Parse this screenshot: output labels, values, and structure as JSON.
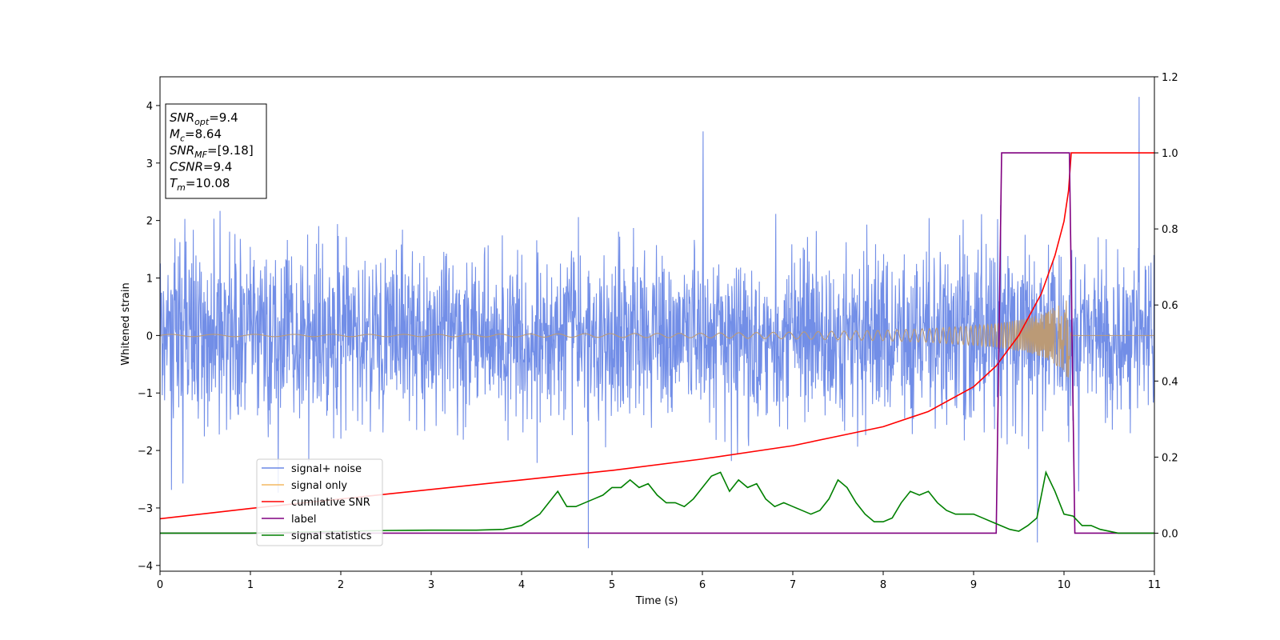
{
  "chart_data": {
    "type": "line",
    "xlabel": "Time (s)",
    "ylabel": "Whitened strain",
    "xlim": [
      0,
      11
    ],
    "ylim": [
      -4.1,
      4.5
    ],
    "y2lim": [
      -0.1,
      1.2
    ],
    "xticks": [
      "0",
      "1",
      "2",
      "3",
      "4",
      "5",
      "6",
      "7",
      "8",
      "9",
      "10",
      "11"
    ],
    "yticks": [
      "−4",
      "−3",
      "−2",
      "−1",
      "0",
      "1",
      "2",
      "3",
      "4"
    ],
    "y2ticks": [
      "0.0",
      "0.2",
      "0.4",
      "0.6",
      "0.8",
      "1.0",
      "1.2"
    ],
    "legend_position": "lower-left",
    "annotation": [
      {
        "main": "SNR",
        "sub": "opt",
        "rest": "=9.4"
      },
      {
        "main": "M",
        "sub": "c",
        "rest": "=8.64"
      },
      {
        "main": "SNR",
        "sub": "MF",
        "rest": "=[9.18]"
      },
      {
        "main": "CSNR",
        "sub": "",
        "rest": "=9.4"
      },
      {
        "main": "T",
        "sub": "m",
        "rest": "=10.08"
      }
    ],
    "colors": {
      "signal_noise": "#6a88e6",
      "signal_only": "#f4b860",
      "overlap": "#bb9a76",
      "cumulative_snr": "#ff0000",
      "label": "#800080",
      "statistics": "#008000"
    },
    "series": [
      {
        "name": "signal+ noise",
        "axis": "left",
        "envelope_x": [
          0,
          11
        ],
        "band": [
          -1.6,
          1.6
        ],
        "max_peak": 4.15,
        "min_peak": -3.7
      },
      {
        "name": "signal only",
        "axis": "left",
        "x": [
          0,
          3,
          6,
          7,
          8,
          8.5,
          9,
          9.3,
          9.6,
          9.8,
          9.95,
          10.05,
          10.08
        ],
        "amplitude": [
          0.02,
          0.02,
          0.04,
          0.06,
          0.09,
          0.12,
          0.17,
          0.22,
          0.3,
          0.4,
          0.55,
          0.75,
          0.0
        ]
      },
      {
        "name": "cumilative SNR",
        "axis": "right",
        "x": [
          0,
          1,
          2,
          3,
          4,
          5,
          6,
          7,
          7.5,
          8,
          8.5,
          9,
          9.25,
          9.5,
          9.75,
          9.9,
          10.0,
          10.05,
          10.08,
          11
        ],
        "y": [
          0.038,
          0.065,
          0.09,
          0.115,
          0.14,
          0.165,
          0.195,
          0.23,
          0.255,
          0.28,
          0.32,
          0.385,
          0.44,
          0.52,
          0.63,
          0.73,
          0.82,
          0.9,
          1.0,
          1.0
        ]
      },
      {
        "name": "label",
        "axis": "right",
        "x": [
          0,
          9.25,
          9.31,
          10.06,
          10.12,
          11
        ],
        "y": [
          0,
          0,
          1,
          1,
          0,
          0
        ]
      },
      {
        "name": "signal statistics",
        "axis": "right",
        "x": [
          0,
          1,
          2,
          2.5,
          3,
          3.5,
          3.8,
          4.0,
          4.1,
          4.2,
          4.3,
          4.4,
          4.5,
          4.6,
          4.7,
          4.8,
          4.9,
          5.0,
          5.1,
          5.2,
          5.3,
          5.4,
          5.5,
          5.6,
          5.7,
          5.8,
          5.9,
          6.0,
          6.1,
          6.2,
          6.3,
          6.4,
          6.5,
          6.6,
          6.7,
          6.8,
          6.9,
          7.0,
          7.1,
          7.2,
          7.3,
          7.4,
          7.5,
          7.6,
          7.7,
          7.8,
          7.9,
          8.0,
          8.1,
          8.2,
          8.3,
          8.4,
          8.5,
          8.6,
          8.7,
          8.8,
          8.9,
          9.0,
          9.1,
          9.2,
          9.3,
          9.4,
          9.5,
          9.6,
          9.7,
          9.8,
          9.9,
          10.0,
          10.1,
          10.2,
          10.3,
          10.4,
          10.6,
          11
        ],
        "y": [
          0.0,
          0.0,
          0.005,
          0.007,
          0.008,
          0.008,
          0.01,
          0.02,
          0.035,
          0.05,
          0.08,
          0.11,
          0.07,
          0.07,
          0.08,
          0.09,
          0.1,
          0.12,
          0.12,
          0.14,
          0.12,
          0.13,
          0.1,
          0.08,
          0.08,
          0.07,
          0.09,
          0.12,
          0.15,
          0.16,
          0.11,
          0.14,
          0.12,
          0.13,
          0.09,
          0.07,
          0.08,
          0.07,
          0.06,
          0.05,
          0.06,
          0.09,
          0.14,
          0.12,
          0.08,
          0.05,
          0.03,
          0.03,
          0.04,
          0.08,
          0.11,
          0.1,
          0.11,
          0.08,
          0.06,
          0.05,
          0.05,
          0.05,
          0.04,
          0.03,
          0.02,
          0.01,
          0.005,
          0.02,
          0.04,
          0.16,
          0.11,
          0.05,
          0.045,
          0.02,
          0.02,
          0.01,
          0.0,
          0.0
        ]
      }
    ]
  }
}
